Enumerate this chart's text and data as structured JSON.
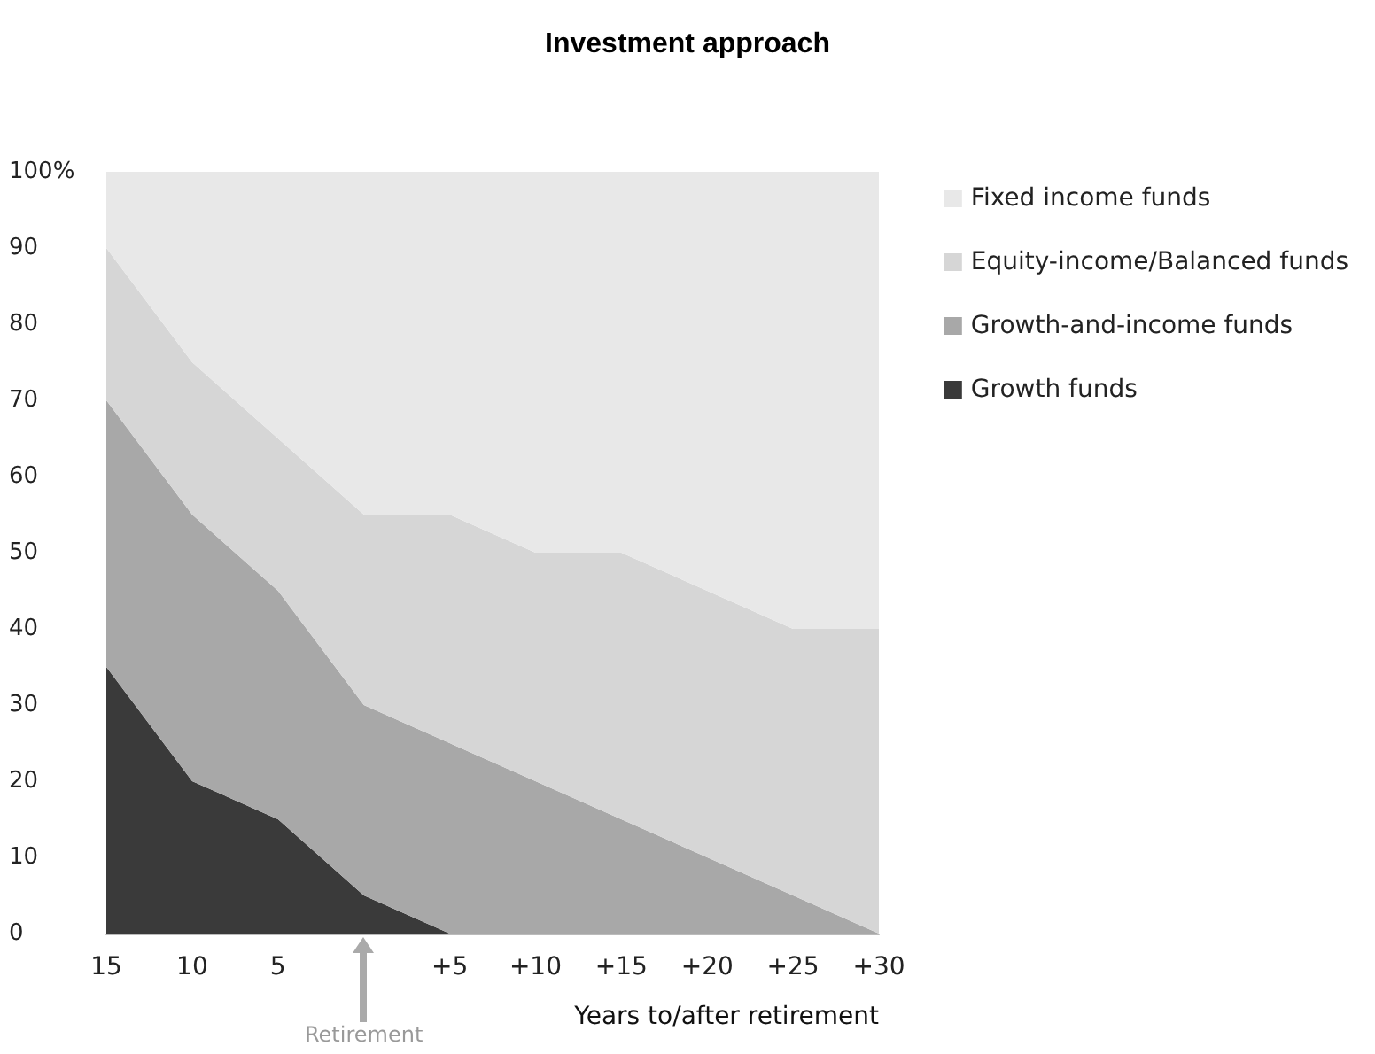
{
  "chart_data": {
    "type": "area",
    "title": "Investment approach",
    "xlabel": "Years to/after retirement",
    "x": [
      -15,
      -10,
      -5,
      0,
      5,
      10,
      15,
      20,
      25,
      30
    ],
    "stacked": true,
    "series": [
      {
        "name": "Growth funds",
        "color": "#3a3a3a",
        "values": [
          35,
          20,
          15,
          5,
          0,
          0,
          0,
          0,
          0,
          0
        ]
      },
      {
        "name": "Growth-and-income funds",
        "color": "#a8a8a8",
        "values": [
          35,
          35,
          30,
          25,
          25,
          20,
          15,
          10,
          5,
          0
        ]
      },
      {
        "name": "Equity-income/Balanced funds",
        "color": "#d6d6d6",
        "values": [
          20,
          20,
          20,
          25,
          30,
          30,
          35,
          35,
          35,
          40
        ]
      },
      {
        "name": "Fixed income funds",
        "color": "#e8e8e8",
        "values": [
          10,
          25,
          35,
          45,
          45,
          50,
          50,
          55,
          60,
          60
        ]
      }
    ],
    "xlim": [
      -15,
      30
    ],
    "xticks": [
      {
        "value": -15,
        "label": "15"
      },
      {
        "value": -10,
        "label": "10"
      },
      {
        "value": -5,
        "label": "5"
      },
      {
        "value": 5,
        "label": "+5"
      },
      {
        "value": 10,
        "label": "+10"
      },
      {
        "value": 15,
        "label": "+15"
      },
      {
        "value": 20,
        "label": "+20"
      },
      {
        "value": 25,
        "label": "+25"
      },
      {
        "value": 30,
        "label": "+30"
      }
    ],
    "ylim": [
      0,
      100
    ],
    "yticks": [
      0,
      10,
      20,
      30,
      40,
      50,
      60,
      70,
      80,
      90,
      {
        "value": 100,
        "label": "100%"
      }
    ],
    "legend": "right",
    "annotations": [
      "Retirement"
    ]
  }
}
